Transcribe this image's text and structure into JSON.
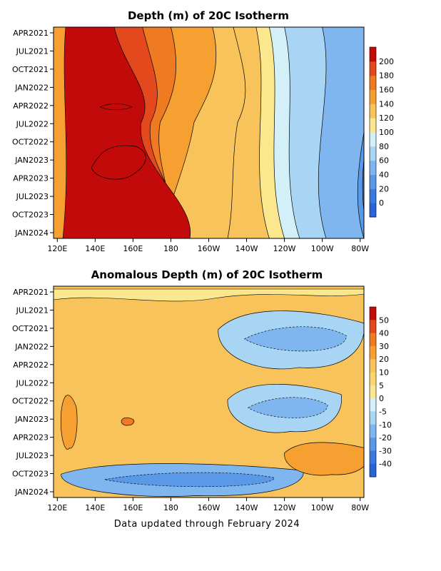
{
  "footer": "Data updated through February 2024",
  "chart_data": [
    {
      "type": "heatmap",
      "title": "Depth (m) of 20C Isotherm",
      "x_ticks": [
        "120E",
        "140E",
        "160E",
        "180",
        "160W",
        "140W",
        "120W",
        "100W",
        "80W"
      ],
      "y_ticks": [
        "APR2021",
        "JUL2021",
        "OCT2021",
        "JAN2022",
        "APR2022",
        "JUL2022",
        "OCT2022",
        "JAN2023",
        "APR2023",
        "JUL2023",
        "OCT2023",
        "JAN2024"
      ],
      "colorbar": {
        "labels": [
          "0",
          "20",
          "40",
          "60",
          "80",
          "100",
          "120",
          "140",
          "160",
          "180",
          "200"
        ],
        "colors": [
          "#2a64d6",
          "#3a7ae0",
          "#5a98e8",
          "#7fb6ef",
          "#a8d5f4",
          "#d3f0f8",
          "#fbe78e",
          "#f7c35a",
          "#f5a030",
          "#ee7a22",
          "#e4491e",
          "#c20a0a"
        ]
      },
      "bands": [
        {
          "level": 200,
          "ranges": [
            [
              120,
              150
            ],
            [
              175,
              190
            ]
          ],
          "color": "#c20a0a"
        },
        {
          "level": 180,
          "ranges": [
            [
              120,
              165
            ],
            [
              176,
              185
            ]
          ],
          "color": "#e4491e"
        },
        {
          "level": 160,
          "ranges": [
            [
              122,
              180
            ],
            [
              172,
              180
            ]
          ],
          "color": "#ee7a22"
        },
        {
          "level": 140,
          "ranges": [
            [
              123,
              202
            ],
            [
              160,
              175
            ]
          ],
          "color": "#f5a030"
        },
        {
          "level": 120,
          "ranges": [
            [
              122,
              213
            ],
            [
              176,
              210
            ]
          ],
          "color": "#f7c35a"
        },
        {
          "level": 100,
          "ranges": [
            [
              123,
              225
            ],
            [
              190,
              232
            ]
          ],
          "color": "#fbe78e"
        },
        {
          "level": 80,
          "ranges": [
            [
              126,
              232
            ],
            [
              205,
              240
            ]
          ],
          "color": "#d3f0f8"
        },
        {
          "level": 60,
          "ranges": [
            [
              133,
              240
            ],
            [
              218,
              248
            ]
          ],
          "color": "#a8d5f4"
        },
        {
          "level": 40,
          "ranges": [
            [
              145,
              260
            ],
            [
              230,
              262
            ]
          ],
          "color": "#7fb6ef"
        },
        {
          "level": 20,
          "ranges": [
            [
              245,
              285
            ],
            [
              245,
              282
            ]
          ],
          "color": "#5a98e8"
        },
        {
          "level": 0,
          "ranges": [
            [
              275,
              285
            ],
            [
              275,
              285
            ]
          ],
          "color": "#3a7ae0"
        }
      ]
    },
    {
      "type": "heatmap",
      "title": "Anomalous Depth (m) of 20C Isotherm",
      "x_ticks": [
        "120E",
        "140E",
        "160E",
        "180",
        "160W",
        "140W",
        "120W",
        "100W",
        "80W"
      ],
      "y_ticks": [
        "APR2021",
        "JUL2021",
        "OCT2021",
        "JAN2022",
        "APR2022",
        "JUL2022",
        "OCT2022",
        "JAN2023",
        "APR2023",
        "JUL2023",
        "OCT2023",
        "JAN2024"
      ],
      "colorbar": {
        "labels": [
          "50",
          "40",
          "30",
          "20",
          "10",
          "5",
          "0",
          "-5",
          "-10",
          "-20",
          "-30",
          "-40"
        ],
        "colors": [
          "#c20a0a",
          "#e4491e",
          "#ee7a22",
          "#f5a030",
          "#f7c35a",
          "#fbd56e",
          "#fbe78e",
          "#d3f0f8",
          "#a8d5f4",
          "#7fb6ef",
          "#5a98e8",
          "#3a7ae0",
          "#2a64d6"
        ]
      },
      "anomaly_regions": [
        {
          "lon": [
            205,
            282
          ],
          "t": [
            0.1,
            0.4
          ],
          "value": -15
        },
        {
          "lon": [
            210,
            270
          ],
          "t": [
            0.45,
            0.7
          ],
          "value": -15
        },
        {
          "lon": [
            122,
            250
          ],
          "t": [
            0.83,
            1.0
          ],
          "value": -25
        },
        {
          "lon": [
            240,
            285
          ],
          "t": [
            0.73,
            0.9
          ],
          "value": 20
        },
        {
          "lon": [
            122,
            130
          ],
          "t": [
            0.5,
            0.78
          ],
          "value": 25
        },
        {
          "lon": [
            154,
            160
          ],
          "t": [
            0.62,
            0.66
          ],
          "value": 30
        }
      ]
    }
  ]
}
